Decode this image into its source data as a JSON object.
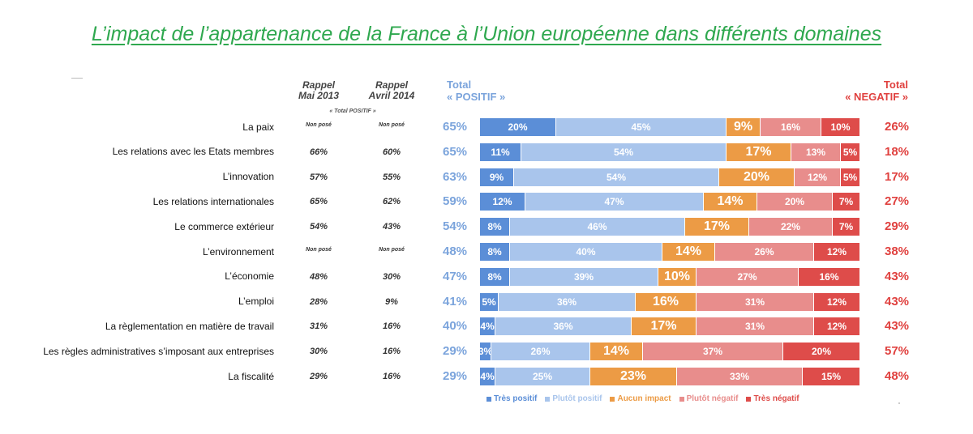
{
  "title": "L’impact de l’appartenance de la France à l’Union européenne dans différents domaines",
  "headers": {
    "rappel_2013": [
      "Rappel",
      "Mai 2013"
    ],
    "rappel_2014": [
      "Rappel",
      "Avril 2014"
    ],
    "rappel_sub": "« Total POSITIF »",
    "total_pos": [
      "Total",
      "« POSITIF »"
    ],
    "total_neg": [
      "Total",
      "« NEGATIF »"
    ]
  },
  "colors": {
    "tres_positif": "#5b8ed7",
    "plutot_positif": "#a9c5ec",
    "aucun_impact": "#ec9b45",
    "plutot_negatif": "#e88d8c",
    "tres_negatif": "#de4c4a",
    "total_pos_text": "#7ba4dc",
    "total_neg_text": "#e0413f",
    "title": "#2fa84f"
  },
  "chart_data": {
    "type": "bar",
    "orientation": "horizontal",
    "stacked": true,
    "legend_position": "bottom",
    "categories": [
      "La paix",
      "Les relations avec les Etats membres",
      "L’innovation",
      "Les relations internationales",
      "Le commerce extérieur",
      "L’environnement",
      "L’économie",
      "L’emploi",
      "La règlementation en matière de travail",
      "Les règles administratives s’imposant aux entreprises",
      "La fiscalité"
    ],
    "series": [
      {
        "name": "Très positif",
        "values": [
          20,
          11,
          9,
          12,
          8,
          8,
          8,
          5,
          4,
          3,
          4
        ]
      },
      {
        "name": "Plutôt positif",
        "values": [
          45,
          54,
          54,
          47,
          46,
          40,
          39,
          36,
          36,
          26,
          25
        ]
      },
      {
        "name": "Aucun impact",
        "values": [
          9,
          17,
          20,
          14,
          17,
          14,
          10,
          16,
          17,
          14,
          23
        ]
      },
      {
        "name": "Plutôt négatif",
        "values": [
          16,
          13,
          12,
          20,
          22,
          26,
          27,
          31,
          31,
          37,
          33
        ]
      },
      {
        "name": "Très négatif",
        "values": [
          10,
          5,
          5,
          7,
          7,
          12,
          16,
          12,
          12,
          20,
          15
        ]
      }
    ],
    "total_positif": [
      "65%",
      "65%",
      "63%",
      "59%",
      "54%",
      "48%",
      "47%",
      "41%",
      "40%",
      "29%",
      "29%"
    ],
    "total_negatif": [
      "26%",
      "18%",
      "17%",
      "27%",
      "29%",
      "38%",
      "43%",
      "43%",
      "43%",
      "57%",
      "48%"
    ],
    "rappel_mai_2013": [
      "Non posé",
      "66%",
      "57%",
      "65%",
      "54%",
      "Non posé",
      "48%",
      "28%",
      "31%",
      "30%",
      "29%"
    ],
    "rappel_avril_2014": [
      "Non posé",
      "60%",
      "55%",
      "62%",
      "43%",
      "Non posé",
      "30%",
      "9%",
      "16%",
      "16%",
      "16%"
    ]
  }
}
